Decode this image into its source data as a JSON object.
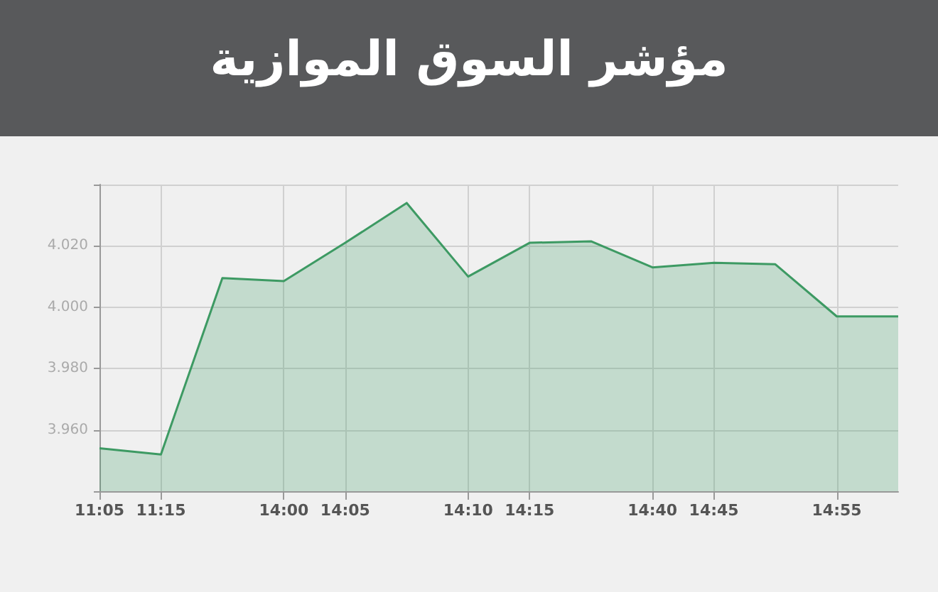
{
  "chart_data": {
    "type": "area",
    "title": "مؤشر السوق الموازية",
    "categories": [
      "11:05",
      "11:15",
      null,
      "14:00",
      "14:05",
      null,
      "14:10",
      "14:15",
      null,
      "14:40",
      "14:45",
      null,
      "14:55",
      null
    ],
    "series": [
      {
        "color": "#3d9a63",
        "values": [
          3954,
          3952,
          4009.5,
          4008.5,
          4021,
          4034,
          4010,
          4021,
          4021.5,
          4013,
          4014.5,
          4014,
          3997,
          3997
        ]
      }
    ],
    "ylim": [
      3940,
      4040
    ],
    "yticks": [
      {
        "value": 3940,
        "label": null
      },
      {
        "value": 3960,
        "label": "3.960"
      },
      {
        "value": 3980,
        "label": "3.980"
      },
      {
        "value": 4000,
        "label": "4.000"
      },
      {
        "value": 4020,
        "label": "4.020"
      },
      {
        "value": 4040,
        "label": null
      }
    ],
    "grid": true,
    "marker": "none"
  }
}
